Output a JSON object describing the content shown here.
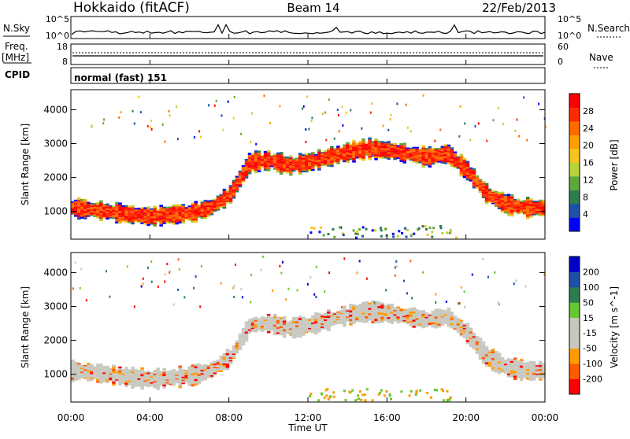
{
  "header": {
    "station": "Hokkaido (fitACF)",
    "beam": "Beam 14",
    "date": "22/Feb/2013"
  },
  "noise_panel": {
    "left_label": "N.Sky",
    "right_label": "N.Search",
    "ticks_left": [
      "10^5",
      "10^0"
    ],
    "ticks_right": [
      "10^5",
      "10^0"
    ]
  },
  "freq_panel": {
    "left_label": "Freq.",
    "left_unit": "[MHz]",
    "left_ticks": [
      "18",
      "8"
    ],
    "right_label": "Nave",
    "right_ticks": [
      "60",
      "0"
    ]
  },
  "cpid_panel": {
    "label": "CPID",
    "mode_text": "normal (fast) 151"
  },
  "chart_data": [
    {
      "type": "heatmap",
      "name": "power",
      "ylabel": "Slant Range [km]",
      "yticks": [
        "4000",
        "3000",
        "2000",
        "1000"
      ],
      "ylim": [
        180,
        4590
      ],
      "colorbar_label": "Power [dB]",
      "colorbar_ticks": [
        "28",
        "24",
        "20",
        "16",
        "12",
        "8",
        "4"
      ],
      "colors": [
        "#0000ff",
        "#1f4fa8",
        "#2e7d4f",
        "#5fa83c",
        "#b8d23a",
        "#f5c51e",
        "#ffa000",
        "#ff6a00",
        "#ff2a00",
        "#ff0000"
      ],
      "band_center_km": [
        [
          0,
          1100
        ],
        [
          1,
          1050
        ],
        [
          2,
          980
        ],
        [
          3,
          900
        ],
        [
          4,
          850
        ],
        [
          5,
          900
        ],
        [
          6,
          950
        ],
        [
          7,
          1100
        ],
        [
          8,
          1500
        ],
        [
          9,
          2450
        ],
        [
          10,
          2500
        ],
        [
          11,
          2350
        ],
        [
          12,
          2450
        ],
        [
          13,
          2600
        ],
        [
          14,
          2750
        ],
        [
          15,
          2850
        ],
        [
          16,
          2800
        ],
        [
          17,
          2700
        ],
        [
          18,
          2600
        ],
        [
          19,
          2700
        ],
        [
          20,
          2200
        ],
        [
          21,
          1500
        ],
        [
          22,
          1200
        ],
        [
          23,
          1100
        ],
        [
          24,
          1100
        ]
      ]
    },
    {
      "type": "heatmap",
      "name": "velocity",
      "ylabel": "Slant Range [km]",
      "yticks": [
        "4000",
        "3000",
        "2000",
        "1000"
      ],
      "ylim": [
        180,
        4590
      ],
      "colorbar_label": "Velocity [m s^-1]",
      "colorbar_ticks": [
        "200",
        "100",
        "50",
        "15",
        "-15",
        "-50",
        "-100",
        "-200"
      ],
      "colors": [
        "#ff0000",
        "#ff5a00",
        "#ff9a00",
        "#c8c8c0",
        "#c8c8c0",
        "#66c833",
        "#2e7d4f",
        "#1f4fa8",
        "#0000c8"
      ],
      "band_center_km": [
        [
          0,
          1100
        ],
        [
          1,
          1050
        ],
        [
          2,
          980
        ],
        [
          3,
          900
        ],
        [
          4,
          850
        ],
        [
          5,
          900
        ],
        [
          6,
          950
        ],
        [
          7,
          1100
        ],
        [
          8,
          1500
        ],
        [
          9,
          2450
        ],
        [
          10,
          2500
        ],
        [
          11,
          2350
        ],
        [
          12,
          2450
        ],
        [
          13,
          2600
        ],
        [
          14,
          2750
        ],
        [
          15,
          2850
        ],
        [
          16,
          2800
        ],
        [
          17,
          2700
        ],
        [
          18,
          2600
        ],
        [
          19,
          2700
        ],
        [
          20,
          2200
        ],
        [
          21,
          1500
        ],
        [
          22,
          1200
        ],
        [
          23,
          1100
        ],
        [
          24,
          1100
        ]
      ]
    }
  ],
  "x_axis": {
    "label": "Time UT",
    "ticks": [
      "00:00",
      "04:00",
      "08:00",
      "12:00",
      "16:00",
      "20:00",
      "00:00"
    ],
    "range_hours": [
      0,
      24
    ]
  }
}
